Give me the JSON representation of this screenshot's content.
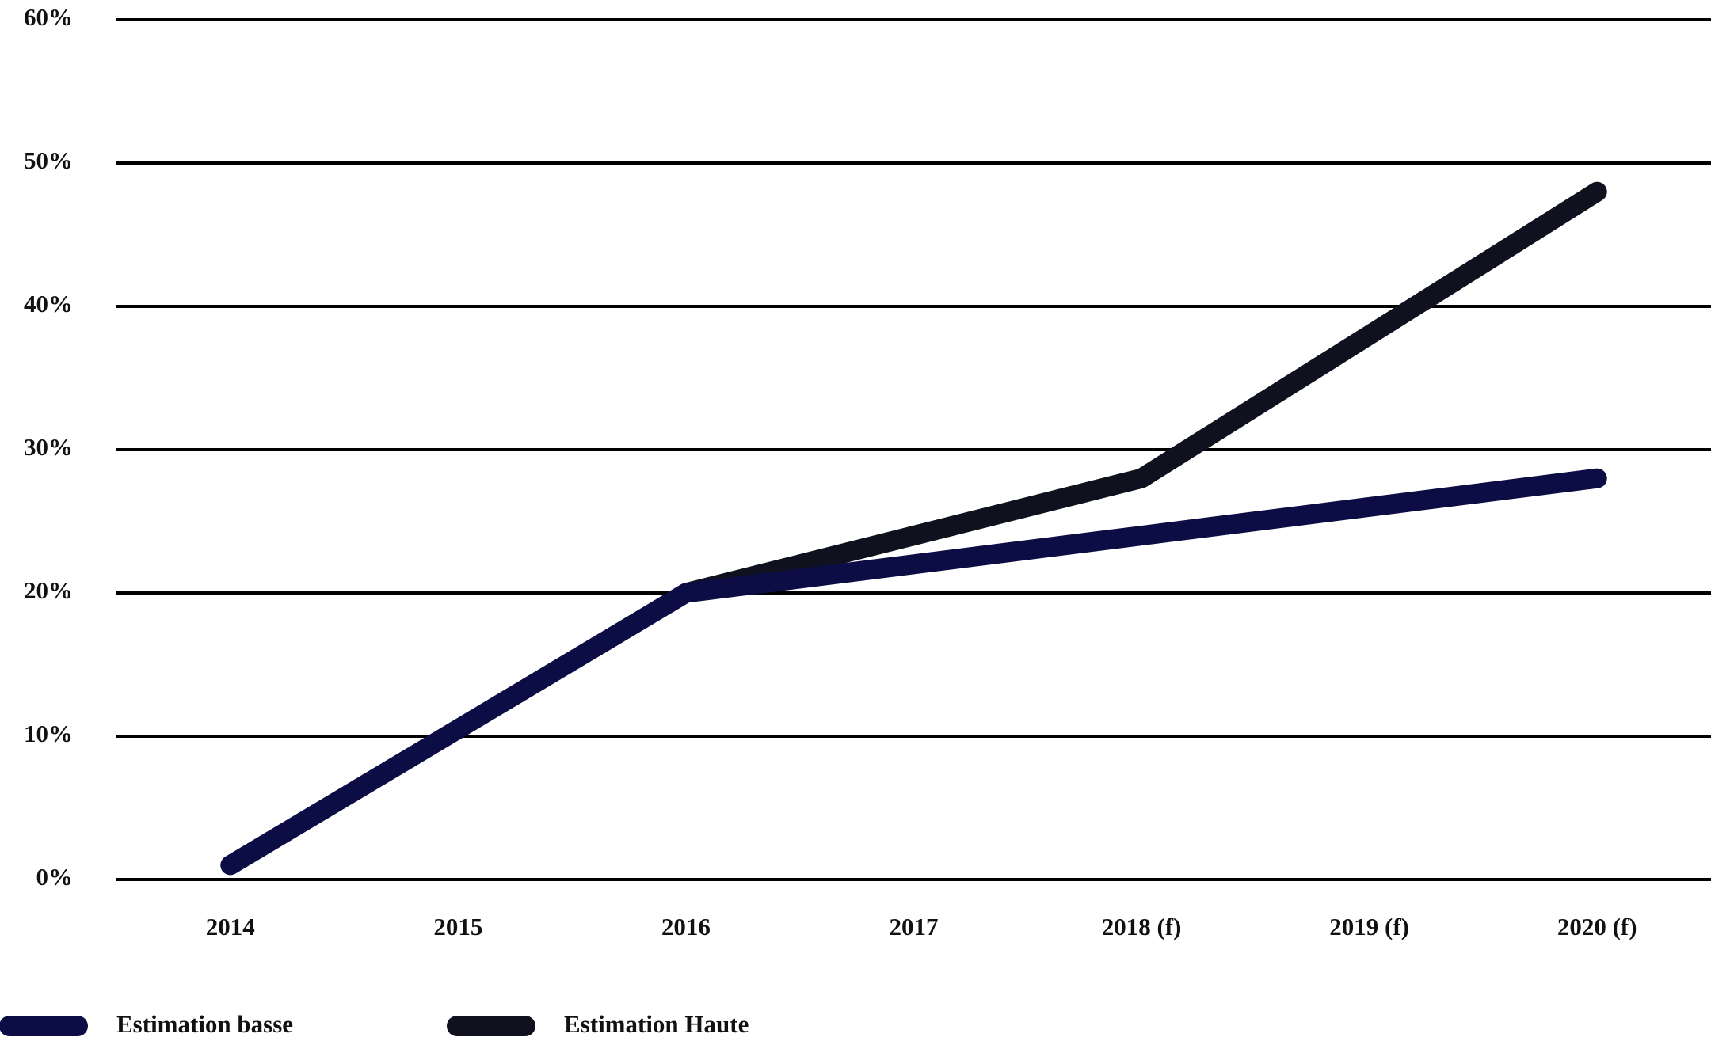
{
  "chart_data": {
    "type": "line",
    "categories": [
      "2014",
      "2015",
      "2016",
      "2017",
      "2018 (f)",
      "2019 (f)",
      "2020 (f)"
    ],
    "series": [
      {
        "name": "Estimation basse",
        "color": "#0d0d45",
        "values": [
          1,
          10.5,
          20,
          22,
          24,
          26,
          28
        ]
      },
      {
        "name": "Estimation Haute",
        "color": "#10111f",
        "values": [
          null,
          null,
          20,
          24,
          28,
          38,
          48
        ]
      }
    ],
    "ylim": [
      0,
      60
    ],
    "yticks": [
      {
        "value": 0,
        "label": "0%"
      },
      {
        "value": 10,
        "label": "10%"
      },
      {
        "value": 20,
        "label": "20%"
      },
      {
        "value": 30,
        "label": "30%"
      },
      {
        "value": 40,
        "label": "40%"
      },
      {
        "value": 50,
        "label": "50%"
      },
      {
        "value": 60,
        "label": "60%"
      }
    ],
    "grid": true
  }
}
